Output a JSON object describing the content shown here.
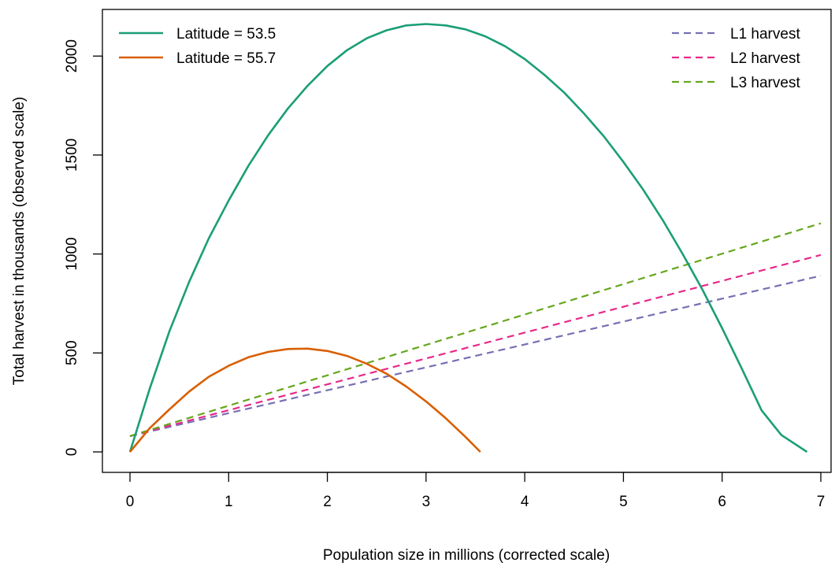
{
  "chart_data": {
    "type": "line",
    "xlabel": "Population size in millions (corrected scale)",
    "ylabel": "Total harvest in thousands (observed scale)",
    "xlim": [
      0,
      7
    ],
    "ylim": [
      0,
      2160
    ],
    "x_ticks": [
      "0",
      "1",
      "2",
      "3",
      "4",
      "5",
      "6",
      "7"
    ],
    "y_ticks": [
      "0",
      "500",
      "1000",
      "1500",
      "2000"
    ],
    "grid": false,
    "curves": [
      {
        "name": "Latitude = 53.5",
        "color": "#1b9e77",
        "style": "solid",
        "points": [
          [
            0,
            0
          ],
          [
            0.2,
            320
          ],
          [
            0.4,
            610
          ],
          [
            0.6,
            860
          ],
          [
            0.8,
            1080
          ],
          [
            1.0,
            1270
          ],
          [
            1.2,
            1445
          ],
          [
            1.4,
            1600
          ],
          [
            1.6,
            1735
          ],
          [
            1.8,
            1850
          ],
          [
            2.0,
            1950
          ],
          [
            2.2,
            2030
          ],
          [
            2.4,
            2090
          ],
          [
            2.6,
            2130
          ],
          [
            2.8,
            2155
          ],
          [
            3.0,
            2162
          ],
          [
            3.2,
            2155
          ],
          [
            3.4,
            2135
          ],
          [
            3.6,
            2100
          ],
          [
            3.8,
            2050
          ],
          [
            4.0,
            1985
          ],
          [
            4.2,
            1905
          ],
          [
            4.4,
            1815
          ],
          [
            4.6,
            1710
          ],
          [
            4.8,
            1595
          ],
          [
            5.0,
            1465
          ],
          [
            5.2,
            1325
          ],
          [
            5.4,
            1170
          ],
          [
            5.6,
            1000
          ],
          [
            5.8,
            820
          ],
          [
            6.0,
            625
          ],
          [
            6.2,
            420
          ],
          [
            6.4,
            210
          ],
          [
            6.6,
            85
          ],
          [
            6.86,
            0
          ]
        ]
      },
      {
        "name": "Latitude = 55.7",
        "color": "#d95f02",
        "style": "solid",
        "points": [
          [
            0,
            0
          ],
          [
            0.2,
            120
          ],
          [
            0.4,
            215
          ],
          [
            0.6,
            305
          ],
          [
            0.8,
            380
          ],
          [
            1.0,
            435
          ],
          [
            1.2,
            478
          ],
          [
            1.4,
            505
          ],
          [
            1.6,
            520
          ],
          [
            1.8,
            522
          ],
          [
            2.0,
            510
          ],
          [
            2.2,
            485
          ],
          [
            2.4,
            445
          ],
          [
            2.6,
            395
          ],
          [
            2.8,
            330
          ],
          [
            3.0,
            255
          ],
          [
            3.2,
            170
          ],
          [
            3.4,
            75
          ],
          [
            3.55,
            0
          ]
        ]
      }
    ],
    "lines": [
      {
        "name": "L1 harvest",
        "color": "#7570b3",
        "style": "dashed",
        "x": [
          0,
          7
        ],
        "y": [
          80,
          890
        ]
      },
      {
        "name": "L2 harvest",
        "color": "#e7298a",
        "style": "dashed",
        "x": [
          0,
          7
        ],
        "y": [
          80,
          995
        ]
      },
      {
        "name": "L3 harvest",
        "color": "#66a61e",
        "style": "dashed",
        "x": [
          0,
          7
        ],
        "y": [
          80,
          1155
        ]
      }
    ],
    "legends": [
      {
        "position": "top-left",
        "entries": [
          "Latitude = 53.5",
          "Latitude = 55.7"
        ]
      },
      {
        "position": "top-right",
        "entries": [
          "L1 harvest",
          "L2 harvest",
          "L3 harvest"
        ]
      }
    ]
  }
}
